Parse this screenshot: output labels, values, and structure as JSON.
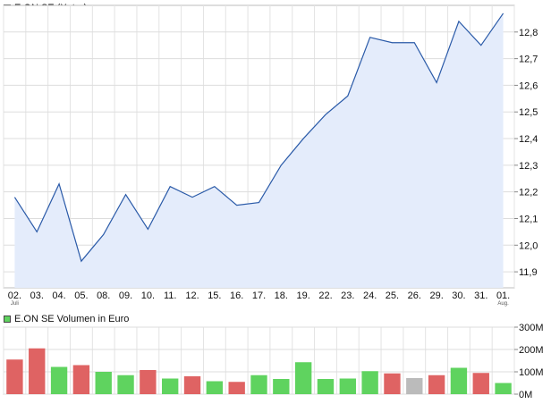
{
  "chart_data": [
    {
      "type": "area",
      "legend": "E.ON SE (Xetra)",
      "legend_color": "#1a4fa3",
      "line_color": "#2a5aa8",
      "fill_color": "#e4ecfb",
      "categories": [
        "02.",
        "03.",
        "04.",
        "05.",
        "08.",
        "09.",
        "10.",
        "11.",
        "12.",
        "15.",
        "16.",
        "17.",
        "18.",
        "19.",
        "22.",
        "23.",
        "24.",
        "25.",
        "26.",
        "29.",
        "30.",
        "31.",
        "01."
      ],
      "category_sublabels": {
        "0": "Juli",
        "22": "Aug."
      },
      "values": [
        12.18,
        12.05,
        12.23,
        11.94,
        12.04,
        12.19,
        12.06,
        12.22,
        12.18,
        12.22,
        12.15,
        12.16,
        12.3,
        12.4,
        12.49,
        12.56,
        12.78,
        12.76,
        12.76,
        12.61,
        12.84,
        12.75,
        12.87
      ],
      "ylim": [
        11.84,
        12.9
      ],
      "yticks": [
        11.9,
        12.0,
        12.1,
        12.2,
        12.3,
        12.4,
        12.5,
        12.6,
        12.7,
        12.8
      ],
      "ytick_labels": [
        "11,9",
        "12,0",
        "12,1",
        "12,2",
        "12,3",
        "12,4",
        "12,5",
        "12,6",
        "12,7",
        "12,8"
      ],
      "grid": true
    },
    {
      "type": "bar",
      "legend": "E.ON SE Volumen in Euro",
      "legend_color": "#5fd35f",
      "colors": {
        "up": "#5fd35f",
        "down": "#df6363",
        "flat": "#bbbbbb"
      },
      "values": [
        155,
        205,
        122,
        130,
        100,
        85,
        108,
        70,
        80,
        58,
        55,
        85,
        68,
        143,
        68,
        70,
        103,
        93,
        72,
        85,
        118,
        95,
        50
      ],
      "directions": [
        "down",
        "down",
        "up",
        "down",
        "up",
        "up",
        "down",
        "up",
        "down",
        "up",
        "down",
        "up",
        "up",
        "up",
        "up",
        "up",
        "up",
        "down",
        "flat",
        "down",
        "up",
        "down",
        "up"
      ],
      "ylim": [
        0,
        300
      ],
      "yticks": [
        0,
        100,
        200,
        300
      ],
      "ytick_labels": [
        "0M",
        "100M",
        "200M",
        "300M"
      ],
      "grid": true
    }
  ]
}
